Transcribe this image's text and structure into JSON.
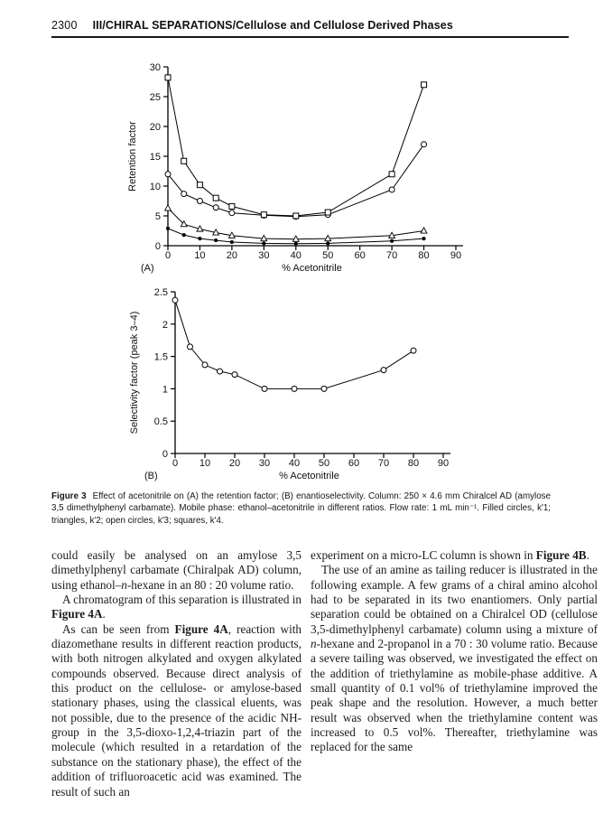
{
  "page": {
    "number": "2300",
    "header_title": "III/CHIRAL SEPARATIONS/Cellulose and Cellulose Derived Phases"
  },
  "figure": {
    "caption_label": "Figure 3",
    "caption_text": "Effect of acetonitrile on (A) the retention factor; (B) enantioselectivity. Column: 250 × 4.6 mm Chiralcel AD (amylose 3,5 dimethylphenyl carbamate). Mobile phase: ethanol–acetonitrile in different ratios. Flow rate: 1 mL min⁻¹. Filled circles, k′1; triangles, k′2; open circles, k′3; squares, k′4."
  },
  "chart_data": [
    {
      "id": "A",
      "panel_label": "(A)",
      "type": "line",
      "title": "",
      "xlabel": "% Acetonitrile",
      "ylabel": "Retention factor",
      "xlim": [
        0,
        90
      ],
      "ylim": [
        0,
        30
      ],
      "xticks": [
        0,
        10,
        20,
        30,
        40,
        50,
        60,
        70,
        80,
        90
      ],
      "yticks": [
        0,
        5,
        10,
        15,
        20,
        25,
        30
      ],
      "grid": false,
      "legend_position": "none",
      "x": [
        0,
        5,
        10,
        15,
        20,
        30,
        40,
        50,
        70,
        80
      ],
      "series": [
        {
          "name": "k′1",
          "marker": "filled-circle",
          "values": [
            2.9,
            1.8,
            1.2,
            0.9,
            0.6,
            0.4,
            0.35,
            0.4,
            0.8,
            1.2
          ]
        },
        {
          "name": "k′2",
          "marker": "open-triangle",
          "values": [
            6.3,
            3.6,
            2.8,
            2.2,
            1.7,
            1.2,
            1.1,
            1.2,
            1.7,
            2.5
          ]
        },
        {
          "name": "k′3",
          "marker": "open-circle",
          "values": [
            12.0,
            8.7,
            7.5,
            6.4,
            5.5,
            5.1,
            4.9,
            5.2,
            9.4,
            17.0
          ]
        },
        {
          "name": "k′4",
          "marker": "open-square",
          "values": [
            28.2,
            14.2,
            10.2,
            8.0,
            6.6,
            5.2,
            5.0,
            5.6,
            12.0,
            27.0
          ]
        }
      ]
    },
    {
      "id": "B",
      "panel_label": "(B)",
      "type": "line",
      "title": "",
      "xlabel": "% Acetonitrile",
      "ylabel": "Selectivity factor (peak 3–4)",
      "xlim": [
        0,
        90
      ],
      "ylim": [
        0,
        2.5
      ],
      "xticks": [
        0,
        10,
        20,
        30,
        40,
        50,
        60,
        70,
        80,
        90
      ],
      "yticks": [
        0,
        0.5,
        1,
        1.5,
        2,
        2.5
      ],
      "grid": false,
      "legend_position": "none",
      "x": [
        0,
        5,
        10,
        15,
        20,
        30,
        40,
        50,
        70,
        80
      ],
      "series": [
        {
          "name": "selectivity",
          "marker": "open-circle",
          "values": [
            2.37,
            1.65,
            1.37,
            1.27,
            1.22,
            1.0,
            1.0,
            1.0,
            1.29,
            1.59
          ]
        }
      ]
    }
  ],
  "body": {
    "left_column": [
      {
        "indent": false,
        "segments": [
          {
            "t": "could easily be analysed on an amylose 3,5 dimethylphenyl carbamate (Chiralpak AD) column, using ethanol–"
          },
          {
            "t": "n",
            "i": true
          },
          {
            "t": "-hexane in an 80 : 20 volume ratio."
          }
        ]
      },
      {
        "indent": true,
        "segments": [
          {
            "t": "A chromatogram of this separation is illustrated in "
          },
          {
            "t": "Figure 4A",
            "b": true
          },
          {
            "t": "."
          }
        ]
      },
      {
        "indent": true,
        "segments": [
          {
            "t": "As can be seen from "
          },
          {
            "t": "Figure 4A",
            "b": true
          },
          {
            "t": ", reaction with diazomethane results in different reaction products, with both nitrogen alkylated and oxygen alkylated compounds observed. Because direct analysis of this product on the cellulose- or amylose-based stationary phases, using the classical eluents, was not possible, due to the presence of the acidic NH-group in the 3,5-dioxo-1,2,4-triazin part of the molecule (which resulted in a retardation of the substance on the stationary phase), the effect of the addition of trifluoroacetic acid was examined. The result of such an"
          }
        ]
      }
    ],
    "right_column": [
      {
        "indent": false,
        "segments": [
          {
            "t": "experiment on a micro-LC column is shown in "
          },
          {
            "t": "Figure 4B",
            "b": true
          },
          {
            "t": "."
          }
        ]
      },
      {
        "indent": true,
        "segments": [
          {
            "t": "The use of an amine as tailing reducer is illustrated in the following example. A few grams of a chiral amino alcohol had to be separated in its two enantiomers. Only partial separation could be obtained on a Chiralcel OD (cellulose 3,5-dimethylphenyl carbamate) column using a mixture of "
          },
          {
            "t": "n",
            "i": true
          },
          {
            "t": "-hexane and 2-propanol in a 70 : 30 volume ratio. Because a severe tailing was observed, we investigated the effect on the addition of triethylamine as mobile-phase additive. A small quantity of 0.1 vol% of triethylamine improved the peak shape and the resolution. However, a much better result was observed when the triethylamine content was increased to 0.5 vol%. Thereafter, triethylamine was replaced for the same"
          }
        ]
      }
    ]
  }
}
